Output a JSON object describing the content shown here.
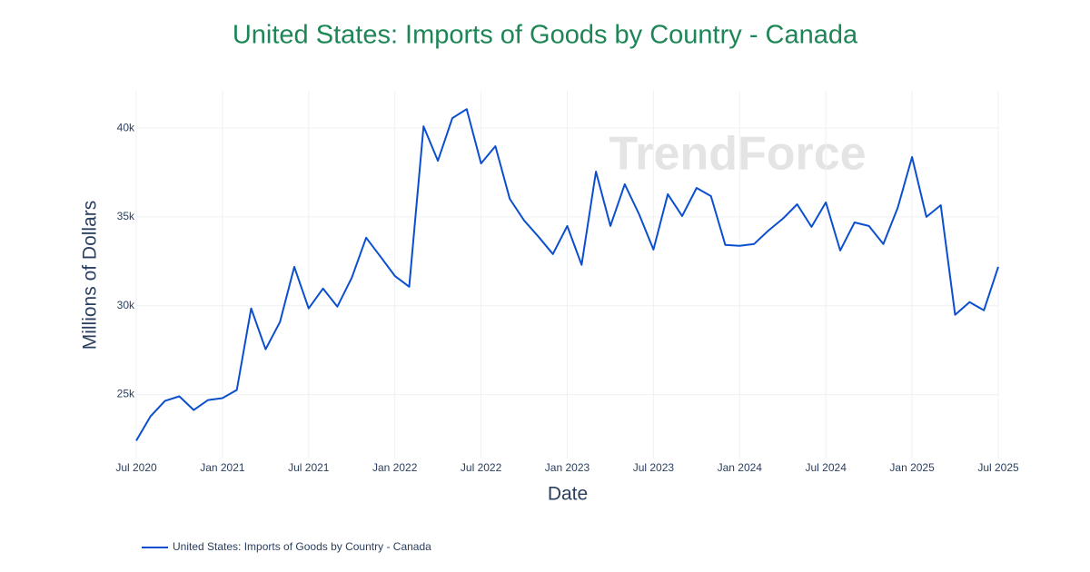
{
  "chart_data": {
    "type": "line",
    "title": "United States: Imports of Goods by Country - Canada",
    "x_label": "Date",
    "y_label": "Millions of Dollars",
    "watermark": "TrendForce",
    "grid": true,
    "legend_position": "bottom-left",
    "x": [
      "2020-07",
      "2020-08",
      "2020-09",
      "2020-10",
      "2020-11",
      "2020-12",
      "2021-01",
      "2021-02",
      "2021-03",
      "2021-04",
      "2021-05",
      "2021-06",
      "2021-07",
      "2021-08",
      "2021-09",
      "2021-10",
      "2021-11",
      "2021-12",
      "2022-01",
      "2022-02",
      "2022-03",
      "2022-04",
      "2022-05",
      "2022-06",
      "2022-07",
      "2022-08",
      "2022-09",
      "2022-10",
      "2022-11",
      "2022-12",
      "2023-01",
      "2023-02",
      "2023-03",
      "2023-04",
      "2023-05",
      "2023-06",
      "2023-07",
      "2023-08",
      "2023-09",
      "2023-10",
      "2023-11",
      "2023-12",
      "2024-01",
      "2024-02",
      "2024-03",
      "2024-04",
      "2024-05",
      "2024-06",
      "2024-07",
      "2024-08",
      "2024-09",
      "2024-10",
      "2024-11",
      "2024-12",
      "2025-01",
      "2025-02",
      "2025-03",
      "2025-04",
      "2025-05",
      "2025-06",
      "2025-07"
    ],
    "series": [
      {
        "name": "United States: Imports of Goods by Country - Canada",
        "color": "#0b4fcf",
        "values": [
          22400,
          23780,
          24640,
          24900,
          24130,
          24690,
          24800,
          25260,
          29850,
          27550,
          29080,
          32190,
          29850,
          30970,
          29950,
          31580,
          33830,
          32760,
          31680,
          31070,
          40100,
          38160,
          40560,
          41070,
          38010,
          38980,
          36020,
          34800,
          33880,
          32910,
          34490,
          32300,
          37550,
          34490,
          36840,
          35150,
          33160,
          36280,
          35050,
          36630,
          36170,
          33420,
          33370,
          33470,
          34230,
          34900,
          35710,
          34440,
          35820,
          33110,
          34690,
          34490,
          33470,
          35510,
          38370,
          35000,
          35660,
          29490,
          30200,
          29740,
          32190
        ]
      }
    ],
    "xlim": [
      "2020-07",
      "2025-07"
    ],
    "xticks": [
      {
        "value": "2020-07",
        "label": "Jul 2020"
      },
      {
        "value": "2021-01",
        "label": "Jan 2021"
      },
      {
        "value": "2021-07",
        "label": "Jul 2021"
      },
      {
        "value": "2022-01",
        "label": "Jan 2022"
      },
      {
        "value": "2022-07",
        "label": "Jul 2022"
      },
      {
        "value": "2023-01",
        "label": "Jan 2023"
      },
      {
        "value": "2023-07",
        "label": "Jul 2023"
      },
      {
        "value": "2024-01",
        "label": "Jan 2024"
      },
      {
        "value": "2024-07",
        "label": "Jul 2024"
      },
      {
        "value": "2025-01",
        "label": "Jan 2025"
      },
      {
        "value": "2025-07",
        "label": "Jul 2025"
      }
    ],
    "ylim": [
      21400,
      42100
    ],
    "yticks": [
      {
        "value": 25000,
        "label": "25k"
      },
      {
        "value": 30000,
        "label": "30k"
      },
      {
        "value": 35000,
        "label": "35k"
      },
      {
        "value": 40000,
        "label": "40k"
      }
    ]
  }
}
